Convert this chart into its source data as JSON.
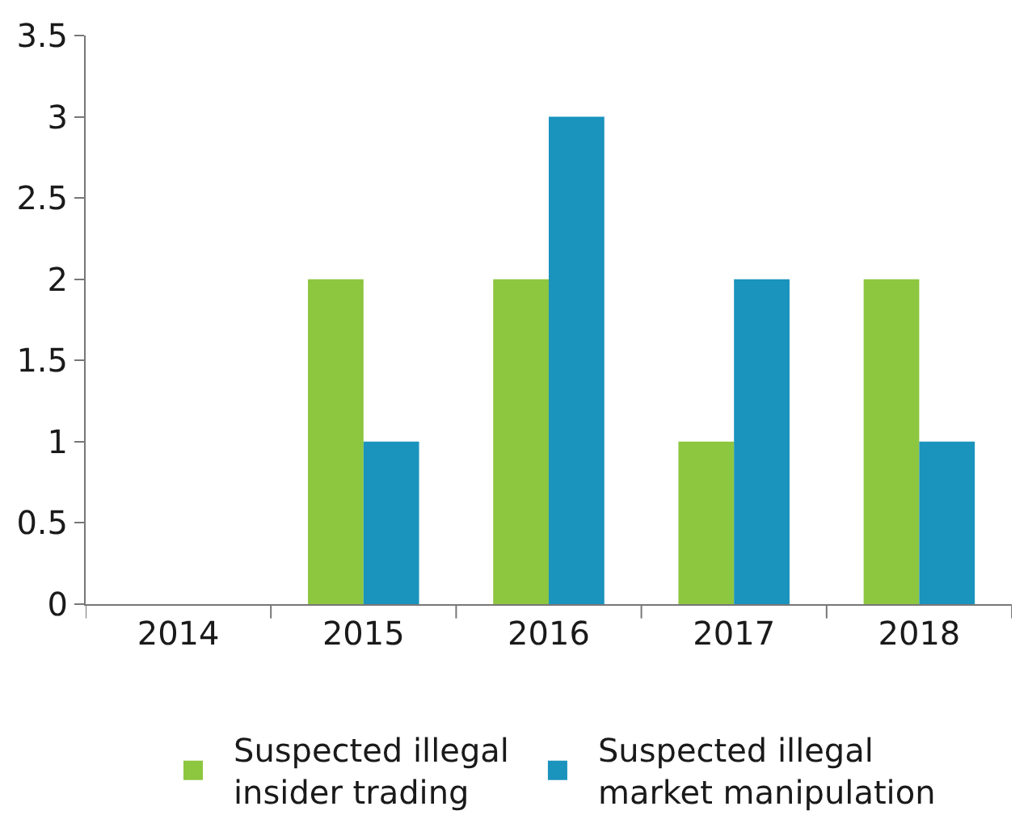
{
  "chart_data": {
    "type": "bar",
    "categories": [
      "2014",
      "2015",
      "2016",
      "2017",
      "2018"
    ],
    "series": [
      {
        "name": "Suspected illegal insider trading",
        "color": "#8dc63f",
        "values": [
          0,
          2,
          2,
          1,
          2
        ]
      },
      {
        "name": "Suspected illegal market manipulation",
        "color": "#1a93bd",
        "values": [
          0,
          1,
          3,
          2,
          1
        ]
      }
    ],
    "ylim": [
      0,
      3.5
    ],
    "yticks": [
      0,
      0.5,
      1,
      1.5,
      2,
      2.5,
      3,
      3.5
    ],
    "legend": "bottom"
  }
}
